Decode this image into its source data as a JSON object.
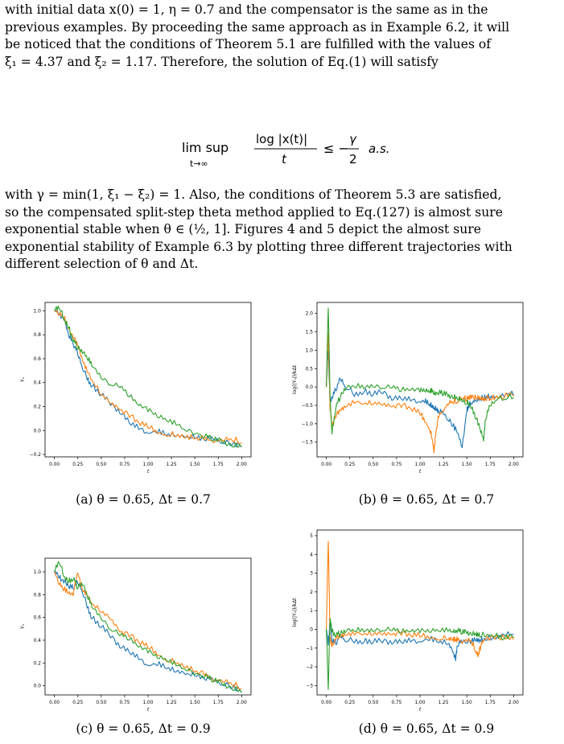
{
  "text": {
    "para1": [
      "with initial data x(0) = 1, η = 0.7 and the compensator is the same as in the",
      "previous examples. By proceeding the same approach as in Example 6.2, it will",
      "be noticed that the conditions of Theorem 5.1 are fulfilled with the values of",
      "ξ₁ = 4.37 and ξ₂ = 1.17. Therefore, the solution of Eq.(1) will satisfy"
    ],
    "equation": {
      "lim": "lim sup",
      "sub": "t→∞",
      "numerator": "log |x(t)|",
      "denominator": "t",
      "rel": "≤ −",
      "gamma": "γ",
      "two": "2",
      "as": "a.s."
    },
    "para2": [
      "with γ = min(1, ξ₁ − ξ₂) = 1. Also, the conditions of Theorem 5.3 are satisfied,",
      "so the compensated split-step theta method applied to Eq.(127) is almost sure",
      "exponential stable when θ ∈ (½, 1]. Figures 4 and 5 depict the almost sure",
      "exponential stability of Example 6.3 by plotting three different trajectories with",
      "different selection of θ and Δt."
    ]
  },
  "colors": {
    "blue": "#1f77b4",
    "orange": "#ff7f0e",
    "green": "#2ca02c"
  },
  "chart_data": [
    {
      "id": "a",
      "type": "line",
      "caption": "(a) θ = 0.65, Δt = 0.7",
      "xlabel": "t",
      "ylabel": "Yₙ",
      "xlim": [
        -0.1,
        2.1
      ],
      "ylim": [
        -0.22,
        1.07
      ],
      "xticks": [
        "0.00",
        "0.25",
        "0.50",
        "0.75",
        "1.00",
        "1.25",
        "1.50",
        "1.75",
        "2.00"
      ],
      "yticks": [
        "−0.2",
        "0.0",
        "0.2",
        "0.4",
        "0.6",
        "0.8",
        "1.0"
      ],
      "x": [
        0,
        0.05,
        0.1,
        0.15,
        0.2,
        0.25,
        0.3,
        0.35,
        0.4,
        0.5,
        0.6,
        0.7,
        0.8,
        0.9,
        1.0,
        1.1,
        1.2,
        1.3,
        1.4,
        1.5,
        1.6,
        1.7,
        1.8,
        1.9,
        2.0
      ],
      "series": [
        {
          "color": "blue",
          "values": [
            1.0,
            0.97,
            0.92,
            0.8,
            0.72,
            0.63,
            0.52,
            0.44,
            0.38,
            0.3,
            0.22,
            0.16,
            0.07,
            0.02,
            -0.02,
            -0.03,
            -0.04,
            -0.05,
            -0.06,
            -0.07,
            -0.08,
            -0.08,
            -0.09,
            -0.1,
            -0.12
          ]
        },
        {
          "color": "orange",
          "values": [
            1.0,
            0.98,
            0.95,
            0.87,
            0.78,
            0.72,
            0.6,
            0.5,
            0.42,
            0.3,
            0.22,
            0.17,
            0.11,
            0.06,
            0.02,
            -0.01,
            -0.03,
            -0.04,
            -0.05,
            -0.06,
            -0.07,
            -0.08,
            -0.09,
            -0.09,
            -0.1
          ]
        },
        {
          "color": "green",
          "values": [
            1.0,
            1.02,
            0.93,
            0.85,
            0.74,
            0.68,
            0.64,
            0.6,
            0.55,
            0.45,
            0.39,
            0.37,
            0.3,
            0.22,
            0.17,
            0.12,
            0.08,
            0.04,
            0.0,
            -0.03,
            -0.06,
            -0.08,
            -0.1,
            -0.12,
            -0.13
          ]
        }
      ]
    },
    {
      "id": "b",
      "type": "line",
      "caption": "(b) θ = 0.65, Δt = 0.7",
      "xlabel": "t",
      "ylabel": "log(|Yₙ|)/kΔt",
      "xlim": [
        -0.1,
        2.1
      ],
      "ylim": [
        -1.9,
        2.3
      ],
      "xticks": [
        "0.00",
        "0.25",
        "0.50",
        "0.75",
        "1.00",
        "1.25",
        "1.50",
        "1.75",
        "2.00"
      ],
      "yticks": [
        "−1.5",
        "−1.0",
        "−0.5",
        "0.0",
        "0.5",
        "1.0",
        "1.5",
        "2.0"
      ],
      "x": [
        0,
        0.02,
        0.04,
        0.06,
        0.1,
        0.15,
        0.2,
        0.3,
        0.4,
        0.5,
        0.6,
        0.7,
        0.8,
        0.9,
        1.0,
        1.05,
        1.1,
        1.13,
        1.15,
        1.17,
        1.2,
        1.25,
        1.3,
        1.35,
        1.4,
        1.45,
        1.5,
        1.52,
        1.55,
        1.6,
        1.65,
        1.68,
        1.7,
        1.75,
        1.8,
        1.9,
        2.0
      ],
      "series": [
        {
          "color": "blue",
          "values": [
            0.0,
            1.0,
            -0.5,
            -0.3,
            -0.1,
            0.2,
            0.0,
            -0.2,
            -0.1,
            -0.2,
            -0.15,
            -0.3,
            -0.3,
            -0.35,
            -0.4,
            -0.45,
            -0.5,
            -0.55,
            -0.6,
            -0.65,
            -0.7,
            -0.75,
            -0.85,
            -1.0,
            -1.2,
            -1.6,
            -0.6,
            -0.5,
            -0.4,
            -0.4,
            -0.35,
            -0.35,
            -0.3,
            -0.3,
            -0.3,
            -0.3,
            -0.25
          ]
        },
        {
          "color": "orange",
          "values": [
            0.0,
            1.5,
            -0.6,
            -1.0,
            -0.8,
            -0.6,
            -0.5,
            -0.4,
            -0.45,
            -0.45,
            -0.5,
            -0.55,
            -0.55,
            -0.6,
            -0.75,
            -0.9,
            -1.1,
            -1.4,
            -1.75,
            -1.2,
            -0.8,
            -0.6,
            -0.5,
            -0.45,
            -0.4,
            -0.35,
            -0.35,
            -0.35,
            -0.3,
            -0.3,
            -0.3,
            -0.3,
            -0.28,
            -0.28,
            -0.25,
            -0.25,
            -0.22
          ]
        },
        {
          "color": "green",
          "values": [
            0.0,
            2.15,
            -0.3,
            -1.3,
            -0.6,
            -0.3,
            -0.1,
            0.0,
            0.0,
            0.05,
            0.0,
            0.0,
            -0.05,
            -0.05,
            -0.1,
            -0.1,
            -0.15,
            -0.15,
            -0.2,
            -0.2,
            -0.2,
            -0.2,
            -0.25,
            -0.25,
            -0.3,
            -0.35,
            -0.4,
            -0.45,
            -0.55,
            -0.8,
            -1.2,
            -1.45,
            -0.9,
            -0.5,
            -0.4,
            -0.35,
            -0.3
          ]
        }
      ]
    },
    {
      "id": "c",
      "type": "line",
      "caption": "(c) θ = 0.65, Δt = 0.9",
      "xlabel": "t",
      "ylabel": "Yₙ",
      "xlim": [
        -0.1,
        2.1
      ],
      "ylim": [
        -0.08,
        1.12
      ],
      "xticks": [
        "0.00",
        "0.25",
        "0.50",
        "0.75",
        "1.00",
        "1.25",
        "1.50",
        "1.75",
        "2.00"
      ],
      "yticks": [
        "0.0",
        "0.2",
        "0.4",
        "0.6",
        "0.8",
        "1.0"
      ],
      "x": [
        0,
        0.05,
        0.1,
        0.15,
        0.2,
        0.25,
        0.3,
        0.35,
        0.4,
        0.5,
        0.6,
        0.7,
        0.8,
        0.9,
        1.0,
        1.1,
        1.2,
        1.3,
        1.4,
        1.5,
        1.6,
        1.7,
        1.8,
        1.9,
        2.0
      ],
      "series": [
        {
          "color": "blue",
          "values": [
            1.0,
            0.95,
            0.9,
            0.87,
            0.85,
            0.9,
            0.82,
            0.7,
            0.6,
            0.52,
            0.43,
            0.35,
            0.3,
            0.24,
            0.18,
            0.17,
            0.15,
            0.12,
            0.1,
            0.08,
            0.06,
            0.04,
            0.02,
            0.0,
            -0.04
          ]
        },
        {
          "color": "orange",
          "values": [
            1.0,
            0.9,
            0.85,
            0.83,
            0.8,
            1.0,
            0.85,
            0.8,
            0.72,
            0.65,
            0.58,
            0.47,
            0.43,
            0.38,
            0.33,
            0.28,
            0.23,
            0.2,
            0.17,
            0.13,
            0.1,
            0.06,
            0.03,
            0.0,
            -0.02
          ]
        },
        {
          "color": "green",
          "values": [
            1.0,
            1.08,
            0.96,
            0.9,
            0.93,
            0.85,
            0.88,
            0.78,
            0.7,
            0.6,
            0.5,
            0.45,
            0.42,
            0.35,
            0.3,
            0.25,
            0.22,
            0.17,
            0.14,
            0.1,
            0.07,
            0.04,
            0.01,
            -0.02,
            -0.05
          ]
        }
      ]
    },
    {
      "id": "d",
      "type": "line",
      "caption": "(d) θ = 0.65, Δt = 0.9",
      "xlabel": "t",
      "ylabel": "log(|Yₙ|)/kΔt",
      "xlim": [
        -0.1,
        2.1
      ],
      "ylim": [
        -3.5,
        5.3
      ],
      "xticks": [
        "0.00",
        "0.25",
        "0.50",
        "0.75",
        "1.00",
        "1.25",
        "1.50",
        "1.75",
        "2.00"
      ],
      "yticks": [
        "−3",
        "−2",
        "−1",
        "0",
        "1",
        "2",
        "3",
        "4",
        "5"
      ],
      "x": [
        0,
        0.02,
        0.04,
        0.06,
        0.1,
        0.15,
        0.2,
        0.3,
        0.4,
        0.5,
        0.6,
        0.7,
        0.8,
        0.9,
        1.0,
        1.1,
        1.2,
        1.3,
        1.35,
        1.38,
        1.4,
        1.45,
        1.5,
        1.55,
        1.6,
        1.62,
        1.65,
        1.7,
        1.8,
        1.9,
        2.0
      ],
      "series": [
        {
          "color": "blue",
          "values": [
            0.0,
            -0.8,
            0.4,
            -0.6,
            -0.8,
            -0.4,
            -0.6,
            -0.6,
            -0.6,
            -0.65,
            -0.65,
            -0.65,
            -0.65,
            -0.6,
            -0.65,
            -0.65,
            -0.7,
            -0.8,
            -1.2,
            -1.7,
            -0.9,
            -0.7,
            -0.6,
            -0.55,
            -0.5,
            -0.5,
            -0.5,
            -0.45,
            -0.4,
            -0.35,
            -0.3
          ]
        },
        {
          "color": "orange",
          "values": [
            0.0,
            4.8,
            -0.5,
            -0.8,
            -0.5,
            -0.3,
            -0.2,
            -0.2,
            -0.25,
            -0.25,
            -0.3,
            -0.3,
            -0.3,
            -0.35,
            -0.4,
            -0.4,
            -0.45,
            -0.5,
            -0.5,
            -0.55,
            -0.55,
            -0.6,
            -0.65,
            -0.75,
            -1.2,
            -1.5,
            -0.9,
            -0.6,
            -0.5,
            -0.45,
            -0.45
          ]
        },
        {
          "color": "green",
          "values": [
            0.0,
            -3.2,
            0.6,
            -0.2,
            -0.4,
            -0.3,
            -0.2,
            -0.1,
            -0.05,
            0.0,
            0.0,
            0.0,
            -0.05,
            -0.05,
            -0.1,
            -0.1,
            -0.1,
            -0.15,
            -0.15,
            -0.15,
            -0.15,
            -0.2,
            -0.2,
            -0.2,
            -0.25,
            -0.25,
            -0.25,
            -0.3,
            -0.3,
            -0.35,
            -0.35
          ]
        }
      ]
    }
  ]
}
